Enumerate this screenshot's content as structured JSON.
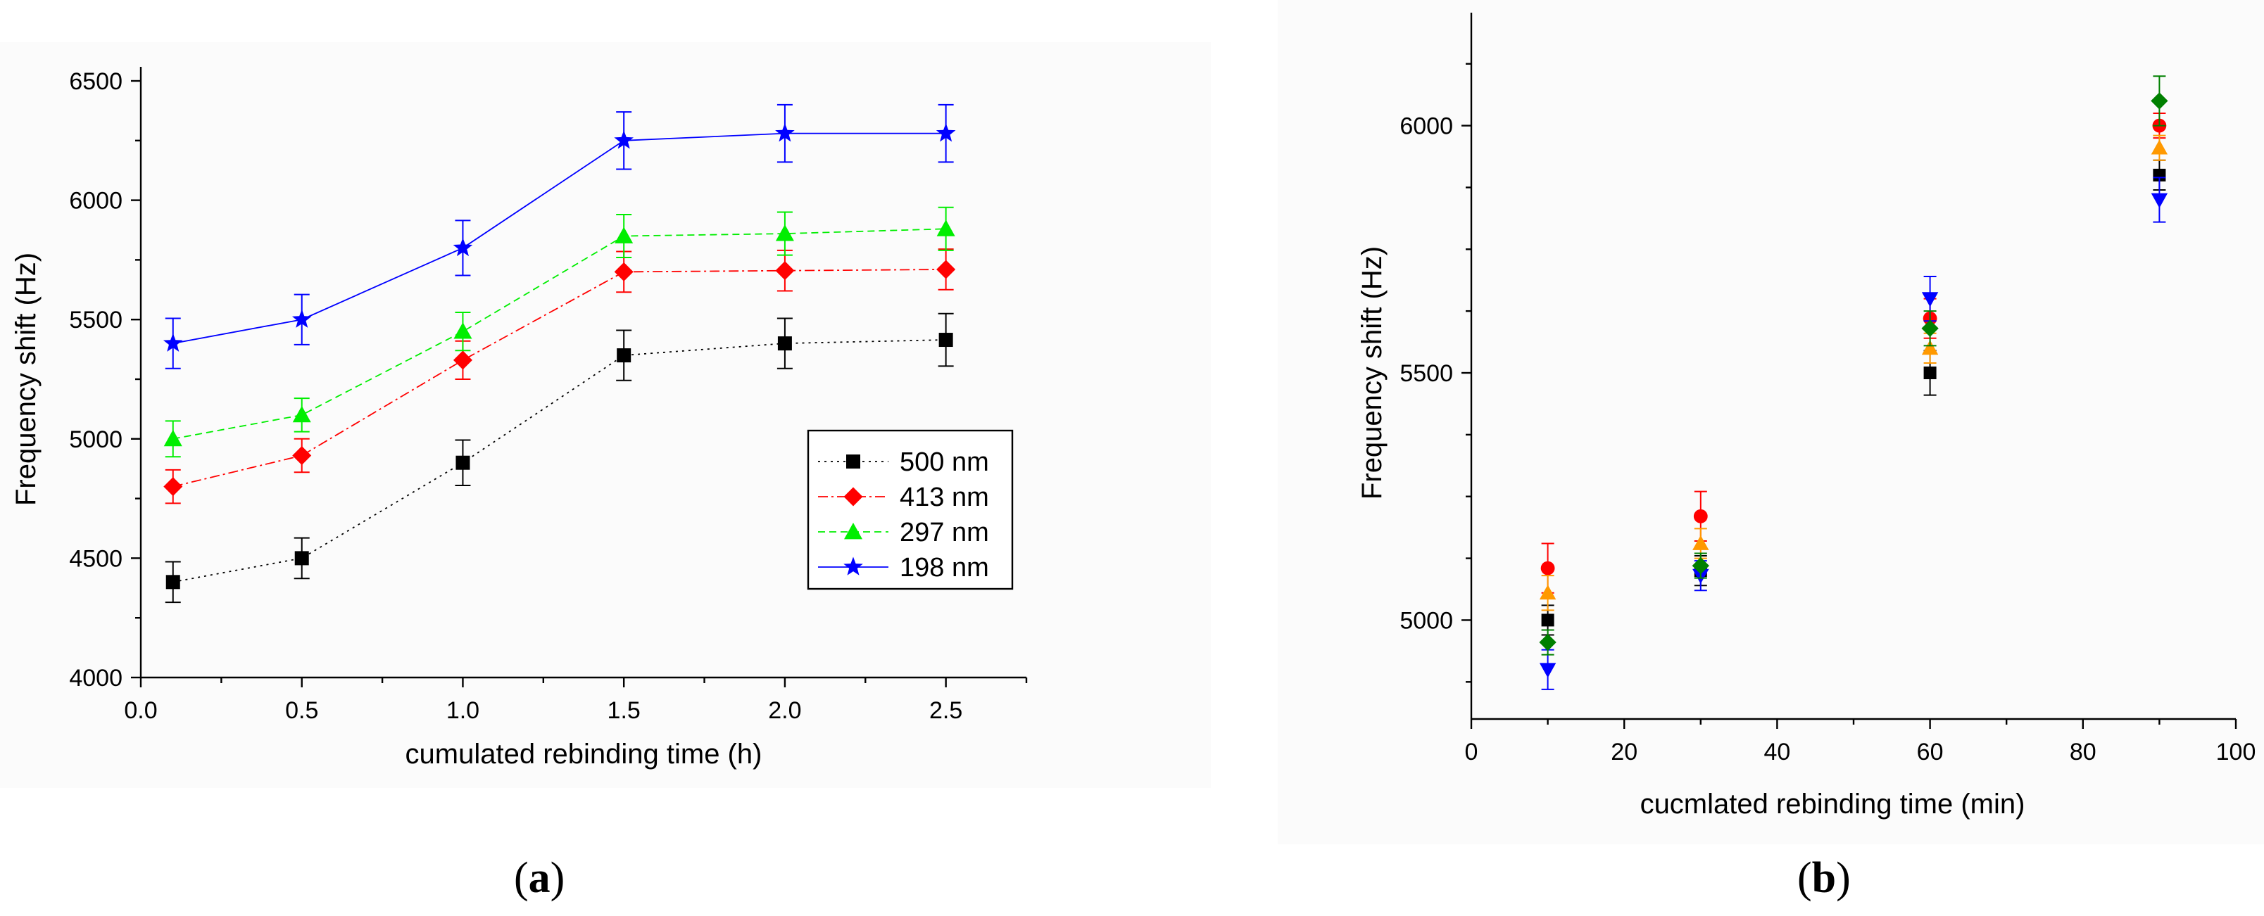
{
  "chart_data": [
    {
      "type": "line",
      "panel": "(a)",
      "xlabel": "cumulated rebinding time (h)",
      "ylabel": "Frequency shift (Hz)",
      "xlim": [
        0.0,
        2.75
      ],
      "ylim": [
        4000,
        6500
      ],
      "xticks": [
        0.0,
        0.5,
        1.0,
        1.5,
        2.0,
        2.5
      ],
      "xtick_labels": [
        "0.0",
        "0.5",
        "1.0",
        "1.5",
        "2.0",
        "2.5"
      ],
      "yticks": [
        4000,
        4500,
        5000,
        5500,
        6000,
        6500
      ],
      "ytick_labels": [
        "4000",
        "4500",
        "5000",
        "5500",
        "6000",
        "6500"
      ],
      "legend_position": "lower-right",
      "x": [
        0.1,
        0.5,
        1.0,
        1.5,
        2.0,
        2.5
      ],
      "series": [
        {
          "name": "500 nm",
          "color": "#000000",
          "marker": "square",
          "dash": "3,6",
          "values": [
            4400,
            4500,
            4900,
            5350,
            5400,
            5415
          ],
          "errors": [
            85,
            85,
            95,
            105,
            105,
            110
          ]
        },
        {
          "name": "413 nm",
          "color": "#ff0000",
          "marker": "diamond",
          "dash": "14,5,3,5",
          "values": [
            4800,
            4930,
            5330,
            5700,
            5705,
            5710
          ],
          "errors": [
            70,
            70,
            80,
            85,
            85,
            85
          ]
        },
        {
          "name": "297 nm",
          "color": "#00ee00",
          "marker": "triangle-up",
          "dash": "10,6",
          "values": [
            5000,
            5100,
            5450,
            5850,
            5860,
            5880
          ],
          "errors": [
            75,
            70,
            80,
            90,
            90,
            90
          ]
        },
        {
          "name": "198 nm",
          "color": "#0000ff",
          "marker": "star",
          "dash": "",
          "values": [
            5400,
            5500,
            5800,
            6250,
            6280,
            6280
          ],
          "errors": [
            105,
            105,
            115,
            120,
            120,
            120
          ]
        }
      ]
    },
    {
      "type": "scatter",
      "panel": "(b)",
      "xlabel": "cucmlated rebinding time (min)",
      "ylabel": "Frequency shift (Hz)",
      "xlim": [
        0,
        100
      ],
      "ylim": [
        4800,
        6200
      ],
      "xticks": [
        0,
        20,
        40,
        60,
        80,
        100
      ],
      "xtick_labels": [
        "0",
        "20",
        "40",
        "60",
        "80",
        "100"
      ],
      "yticks": [
        5000,
        5500,
        6000
      ],
      "ytick_labels": [
        "5000",
        "5500",
        "6000"
      ],
      "x": [
        10,
        30,
        60,
        90
      ],
      "series": [
        {
          "color": "#000000",
          "marker": "square",
          "values": [
            5000,
            5100,
            5500,
            5900
          ],
          "errors": [
            30,
            30,
            45,
            30
          ]
        },
        {
          "color": "#ff0000",
          "marker": "circle",
          "values": [
            5105,
            5210,
            5610,
            6000
          ],
          "errors": [
            50,
            50,
            40,
            25
          ]
        },
        {
          "color": "#ff9900",
          "marker": "triangle-up",
          "values": [
            5055,
            5155,
            5550,
            5955
          ],
          "errors": [
            35,
            30,
            30,
            25
          ]
        },
        {
          "color": "#0000ff",
          "marker": "triangle-down",
          "values": [
            4900,
            5090,
            5650,
            5850
          ],
          "errors": [
            40,
            30,
            45,
            45
          ]
        },
        {
          "color": "#008000",
          "marker": "diamond",
          "values": [
            4955,
            5110,
            5590,
            6050
          ],
          "errors": [
            25,
            25,
            35,
            50
          ]
        }
      ]
    }
  ]
}
